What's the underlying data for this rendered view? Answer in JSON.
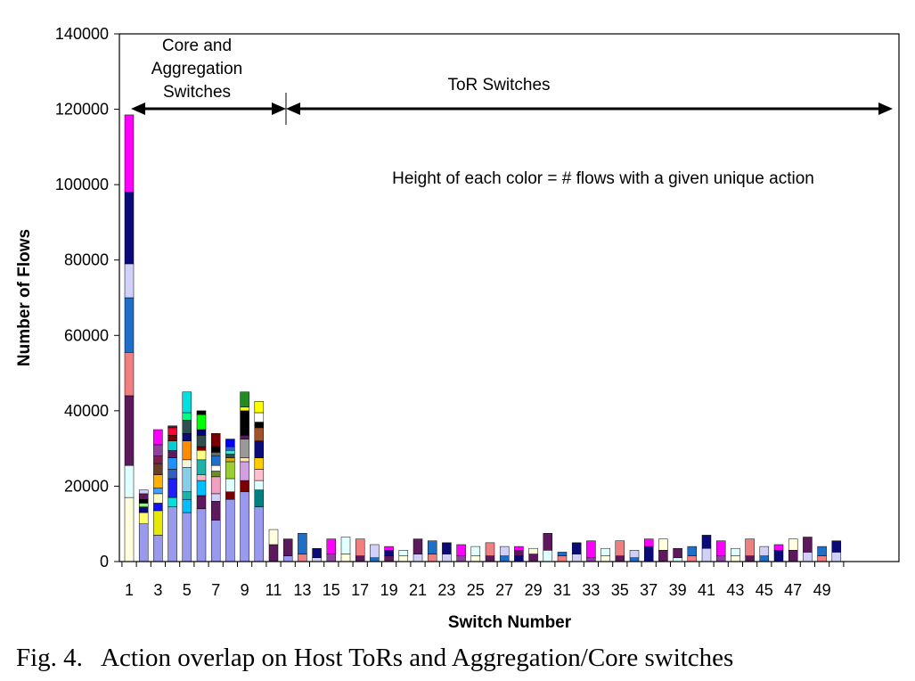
{
  "chart_data": {
    "type": "bar",
    "stacked": true,
    "title": "",
    "xlabel": "Switch Number",
    "ylabel": "Number of Flows",
    "ylim": [
      0,
      140000
    ],
    "y_ticks": [
      0,
      20000,
      40000,
      60000,
      80000,
      100000,
      120000,
      140000
    ],
    "x_tick_labels": [
      "1",
      "3",
      "5",
      "7",
      "9",
      "11",
      "13",
      "15",
      "17",
      "19",
      "21",
      "23",
      "25",
      "27",
      "29",
      "31",
      "33",
      "35",
      "37",
      "39",
      "41",
      "43",
      "45",
      "47",
      "49"
    ],
    "categories": [
      "1",
      "2",
      "3",
      "4",
      "5",
      "6",
      "7",
      "8",
      "9",
      "10",
      "11",
      "12",
      "13",
      "14",
      "15",
      "16",
      "17",
      "18",
      "19",
      "20",
      "21",
      "22",
      "23",
      "24",
      "25",
      "26",
      "27",
      "28",
      "29",
      "30",
      "31",
      "32",
      "33",
      "34",
      "35",
      "36",
      "37",
      "38",
      "39",
      "40",
      "41",
      "42",
      "43",
      "44",
      "45",
      "46",
      "47",
      "48",
      "49",
      "50"
    ],
    "stacks": [
      [
        [
          17000,
          "#FFFFE0"
        ],
        [
          8500,
          "#E0FFFF"
        ],
        [
          18500,
          "#5C1A5C"
        ],
        [
          11500,
          "#F08080"
        ],
        [
          14500,
          "#1E6FC8"
        ],
        [
          9000,
          "#D0D0F8"
        ],
        [
          19000,
          "#0A0A78"
        ],
        [
          20500,
          "#FF00FF"
        ]
      ],
      [
        [
          10000,
          "#9999EE"
        ],
        [
          3000,
          "#FFFF66"
        ],
        [
          1500,
          "#0A0A78"
        ],
        [
          1000,
          "#80FF80"
        ],
        [
          1000,
          "#000000"
        ],
        [
          1500,
          "#5C1A5C"
        ],
        [
          1000,
          "#D0D0F8"
        ]
      ],
      [
        [
          7000,
          "#9999EE"
        ],
        [
          6500,
          "#E8E800"
        ],
        [
          2000,
          "#1010FF"
        ],
        [
          2500,
          "#FFFFC0"
        ],
        [
          1500,
          "#40A0FF"
        ],
        [
          3500,
          "#FFB000"
        ],
        [
          3000,
          "#6B3E26"
        ],
        [
          2000,
          "#7F1F4F"
        ],
        [
          3000,
          "#9040A0"
        ],
        [
          4000,
          "#FF00FF"
        ]
      ],
      [
        [
          14500,
          "#9999EE"
        ],
        [
          2500,
          "#00E0E0"
        ],
        [
          5000,
          "#1E1EFF"
        ],
        [
          2500,
          "#3060C0"
        ],
        [
          3000,
          "#1E90FF"
        ],
        [
          2000,
          "#5C1A5C"
        ],
        [
          2500,
          "#00CED1"
        ],
        [
          1500,
          "#7A0000"
        ],
        [
          2000,
          "#FF0033"
        ],
        [
          500,
          "#333333"
        ]
      ],
      [
        [
          13000,
          "#9999EE"
        ],
        [
          3500,
          "#00BFFF"
        ],
        [
          2000,
          "#20B2AA"
        ],
        [
          6500,
          "#87CEEB"
        ],
        [
          2000,
          "#F5F5DC"
        ],
        [
          5000,
          "#FF8C00"
        ],
        [
          2000,
          "#0A0A78"
        ],
        [
          3500,
          "#2F4F4F"
        ],
        [
          2000,
          "#00FF7F"
        ],
        [
          5500,
          "#00E0E0"
        ]
      ],
      [
        [
          14000,
          "#9999EE"
        ],
        [
          3500,
          "#5C1A5C"
        ],
        [
          4000,
          "#00BFFF"
        ],
        [
          1500,
          "#FFB6C1"
        ],
        [
          4000,
          "#20B2AA"
        ],
        [
          2500,
          "#FFFF80"
        ],
        [
          1000,
          "#7A0000"
        ],
        [
          3000,
          "#2F4F4F"
        ],
        [
          1500,
          "#000080"
        ],
        [
          4000,
          "#00FF00"
        ],
        [
          1000,
          "#000000"
        ]
      ],
      [
        [
          11000,
          "#9999EE"
        ],
        [
          5000,
          "#5C1A5C"
        ],
        [
          2000,
          "#D0D0F8"
        ],
        [
          4500,
          "#F0A0C0"
        ],
        [
          1500,
          "#6B8E23"
        ],
        [
          1500,
          "#FFFFFF"
        ],
        [
          2500,
          "#1E6FC8"
        ],
        [
          1000,
          "#696969"
        ],
        [
          1500,
          "#000000"
        ],
        [
          3500,
          "#7A0000"
        ]
      ],
      [
        [
          16500,
          "#9999EE"
        ],
        [
          2000,
          "#7A0000"
        ],
        [
          3500,
          "#E0FFFF"
        ],
        [
          4500,
          "#9ACD32"
        ],
        [
          1000,
          "#DAA520"
        ],
        [
          1000,
          "#2F4F4F"
        ],
        [
          1000,
          "#40E0D0"
        ],
        [
          1000,
          "#3060C0"
        ],
        [
          2000,
          "#0000FF"
        ]
      ],
      [
        [
          18500,
          "#9999EE"
        ],
        [
          3000,
          "#7A0000"
        ],
        [
          5000,
          "#D0A0E0"
        ],
        [
          1000,
          "#FFE4B5"
        ],
        [
          5000,
          "#999999"
        ],
        [
          1000,
          "#5C1A5C"
        ],
        [
          6500,
          "#000000"
        ],
        [
          1000,
          "#FFFF00"
        ],
        [
          4000,
          "#228B22"
        ]
      ],
      [
        [
          14500,
          "#9999EE"
        ],
        [
          4500,
          "#008080"
        ],
        [
          2500,
          "#E0FFFF"
        ],
        [
          3000,
          "#FFC0CB"
        ],
        [
          3000,
          "#FFCC00"
        ],
        [
          4500,
          "#0A0A78"
        ],
        [
          3500,
          "#A0522D"
        ],
        [
          1500,
          "#000000"
        ],
        [
          2500,
          "#FFFFFF"
        ],
        [
          3000,
          "#FFFF00"
        ]
      ],
      [
        [
          4500,
          "#5C1A5C"
        ],
        [
          4000,
          "#FFFFE0"
        ]
      ],
      [
        [
          1500,
          "#9999EE"
        ],
        [
          4500,
          "#5C1A5C"
        ]
      ],
      [
        [
          2000,
          "#F08080"
        ],
        [
          5500,
          "#1E6FC8"
        ]
      ],
      [
        [
          1000,
          "#D0D0F8"
        ],
        [
          2500,
          "#0A0A78"
        ]
      ],
      [
        [
          2000,
          "#9040A0"
        ],
        [
          4000,
          "#FF00FF"
        ]
      ],
      [
        [
          2000,
          "#FFFFE0"
        ],
        [
          4500,
          "#E0FFFF"
        ]
      ],
      [
        [
          1500,
          "#5C1A5C"
        ],
        [
          4500,
          "#F08080"
        ]
      ],
      [
        [
          1000,
          "#1E6FC8"
        ],
        [
          3500,
          "#D0D0F8"
        ]
      ],
      [
        [
          1500,
          "#5C1A5C"
        ],
        [
          1500,
          "#0A0A78"
        ],
        [
          1000,
          "#FF00FF"
        ]
      ],
      [
        [
          1500,
          "#FFFFE0"
        ],
        [
          1500,
          "#E0FFFF"
        ]
      ],
      [
        [
          2000,
          "#D0D0F8"
        ],
        [
          4000,
          "#5C1A5C"
        ]
      ],
      [
        [
          2000,
          "#F08080"
        ],
        [
          3500,
          "#1E6FC8"
        ]
      ],
      [
        [
          2000,
          "#D0D0F8"
        ],
        [
          3000,
          "#0A0A78"
        ]
      ],
      [
        [
          1500,
          "#9040A0"
        ],
        [
          3000,
          "#FF00FF"
        ]
      ],
      [
        [
          1500,
          "#FFFFE0"
        ],
        [
          2500,
          "#E0FFFF"
        ]
      ],
      [
        [
          1500,
          "#5C1A5C"
        ],
        [
          3500,
          "#F08080"
        ]
      ],
      [
        [
          1500,
          "#1E6FC8"
        ],
        [
          2500,
          "#D0D0F8"
        ]
      ],
      [
        [
          1500,
          "#0A0A78"
        ],
        [
          1500,
          "#5C1A5C"
        ],
        [
          1000,
          "#FF00FF"
        ]
      ],
      [
        [
          2000,
          "#5C1A5C"
        ],
        [
          1500,
          "#FFFFE0"
        ]
      ],
      [
        [
          3000,
          "#E0FFFF"
        ],
        [
          4500,
          "#5C1A5C"
        ]
      ],
      [
        [
          1500,
          "#F08080"
        ],
        [
          1000,
          "#1E6FC8"
        ]
      ],
      [
        [
          2000,
          "#D0D0F8"
        ],
        [
          3000,
          "#0A0A78"
        ]
      ],
      [
        [
          1000,
          "#9040A0"
        ],
        [
          4500,
          "#FF00FF"
        ]
      ],
      [
        [
          1500,
          "#FFFFE0"
        ],
        [
          2000,
          "#E0FFFF"
        ]
      ],
      [
        [
          1500,
          "#5C1A5C"
        ],
        [
          4000,
          "#F08080"
        ]
      ],
      [
        [
          1000,
          "#1E6FC8"
        ],
        [
          2000,
          "#D0D0F8"
        ]
      ],
      [
        [
          4000,
          "#0A0A78"
        ],
        [
          2000,
          "#FF00FF"
        ]
      ],
      [
        [
          3000,
          "#5C1A5C"
        ],
        [
          3000,
          "#FFFFE0"
        ]
      ],
      [
        [
          1000,
          "#E0FFFF"
        ],
        [
          2500,
          "#5C1A5C"
        ]
      ],
      [
        [
          1500,
          "#F08080"
        ],
        [
          2500,
          "#1E6FC8"
        ]
      ],
      [
        [
          3500,
          "#D0D0F8"
        ],
        [
          3500,
          "#0A0A78"
        ]
      ],
      [
        [
          1500,
          "#9040A0"
        ],
        [
          4000,
          "#FF00FF"
        ]
      ],
      [
        [
          1500,
          "#FFFFE0"
        ],
        [
          2000,
          "#E0FFFF"
        ]
      ],
      [
        [
          1500,
          "#5C1A5C"
        ],
        [
          4500,
          "#F08080"
        ]
      ],
      [
        [
          1500,
          "#1E6FC8"
        ],
        [
          2500,
          "#D0D0F8"
        ]
      ],
      [
        [
          3000,
          "#0A0A78"
        ],
        [
          1500,
          "#FF00FF"
        ]
      ],
      [
        [
          3000,
          "#5C1A5C"
        ],
        [
          3000,
          "#FFFFE0"
        ]
      ],
      [
        [
          2500,
          "#D0D0F8"
        ],
        [
          4000,
          "#5C1A5C"
        ]
      ],
      [
        [
          1500,
          "#F08080"
        ],
        [
          2500,
          "#1E6FC8"
        ]
      ],
      [
        [
          2500,
          "#D0D0F8"
        ],
        [
          3000,
          "#0A0A78"
        ]
      ]
    ],
    "annotations": {
      "group1_label_lines": [
        "Core and",
        "Aggregation",
        "Switches"
      ],
      "group2_label": "ToR Switches",
      "note": "Height of each color = # flows with a given unique action"
    },
    "legend": "none",
    "grid": false
  },
  "caption": "Fig. 4.   Action overlap on Host ToRs and Aggregation/Core switches"
}
